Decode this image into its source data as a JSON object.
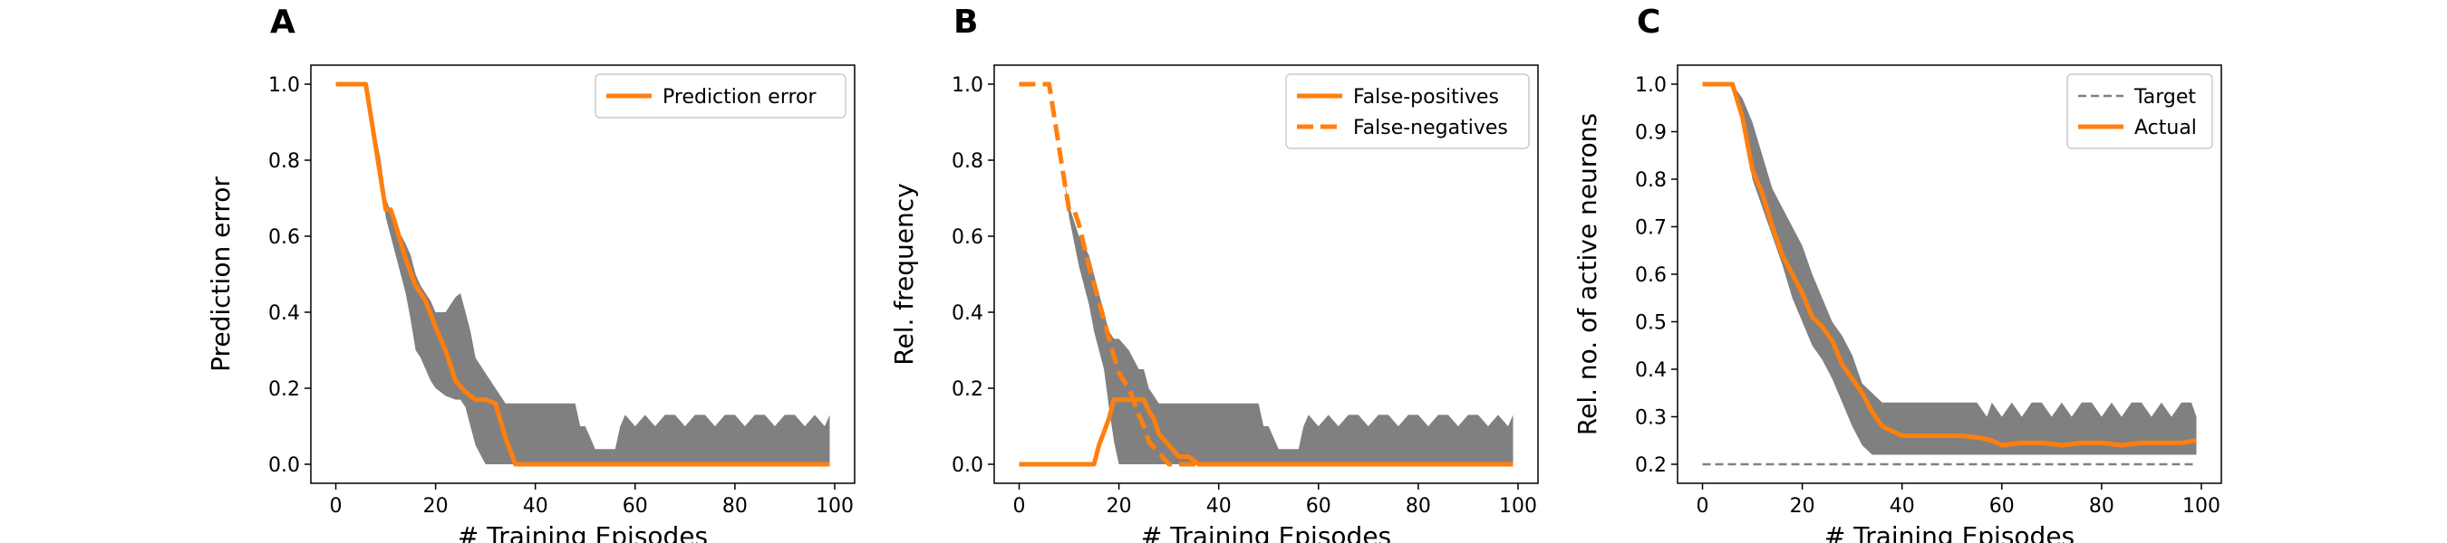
{
  "chart_data": [
    {
      "type": "line",
      "panel_label": "A",
      "xlabel": "# Training Episodes",
      "ylabel": "Prediction error",
      "xlim": [
        -5,
        104
      ],
      "ylim": [
        -0.05,
        1.05
      ],
      "xticks": [
        0,
        20,
        40,
        60,
        80,
        100
      ],
      "yticks": [
        "0.0",
        "0.2",
        "0.4",
        "0.6",
        "0.8",
        "1.0"
      ],
      "legend_position": "top-right",
      "band": {
        "color": "#808080",
        "x": [
          0,
          6,
          9,
          10,
          12,
          14,
          15,
          16,
          17,
          18,
          19,
          20,
          22,
          24,
          25,
          26,
          27,
          28,
          30,
          32,
          34,
          36,
          38,
          40,
          42,
          44,
          46,
          48,
          49,
          50,
          52,
          54,
          56,
          57,
          58,
          60,
          62,
          64,
          66,
          68,
          70,
          72,
          74,
          76,
          78,
          80,
          82,
          84,
          86,
          88,
          90,
          92,
          94,
          96,
          98,
          99
        ],
        "upper": [
          1.0,
          1.0,
          0.8,
          0.7,
          0.63,
          0.58,
          0.55,
          0.5,
          0.47,
          0.45,
          0.43,
          0.4,
          0.4,
          0.44,
          0.45,
          0.4,
          0.35,
          0.28,
          0.24,
          0.2,
          0.16,
          0.16,
          0.16,
          0.16,
          0.16,
          0.16,
          0.16,
          0.16,
          0.1,
          0.1,
          0.04,
          0.04,
          0.04,
          0.1,
          0.13,
          0.1,
          0.13,
          0.1,
          0.13,
          0.13,
          0.1,
          0.13,
          0.13,
          0.1,
          0.13,
          0.13,
          0.1,
          0.13,
          0.13,
          0.1,
          0.13,
          0.13,
          0.1,
          0.13,
          0.1,
          0.13
        ],
        "lower": [
          1.0,
          1.0,
          0.75,
          0.65,
          0.55,
          0.45,
          0.38,
          0.3,
          0.28,
          0.25,
          0.22,
          0.2,
          0.18,
          0.17,
          0.17,
          0.15,
          0.1,
          0.05,
          0.0,
          0.0,
          0.0,
          0.0,
          0.0,
          0.0,
          0.0,
          0.0,
          0.0,
          0.0,
          0.0,
          0.0,
          0.0,
          0.0,
          0.0,
          0.0,
          0.0,
          0.0,
          0.0,
          0.0,
          0.0,
          0.0,
          0.0,
          0.0,
          0.0,
          0.0,
          0.0,
          0.0,
          0.0,
          0.0,
          0.0,
          0.0,
          0.0,
          0.0,
          0.0,
          0.0,
          0.0,
          0.0
        ]
      },
      "series": [
        {
          "name": "Prediction error",
          "color": "#ff7f0e",
          "dash": "solid",
          "x": [
            0,
            6,
            10,
            11,
            12,
            14,
            16,
            18,
            20,
            22,
            24,
            26,
            28,
            30,
            32,
            34,
            36,
            40,
            60,
            80,
            99
          ],
          "y": [
            1.0,
            1.0,
            0.67,
            0.67,
            0.63,
            0.54,
            0.47,
            0.43,
            0.36,
            0.3,
            0.22,
            0.19,
            0.17,
            0.17,
            0.16,
            0.07,
            0.0,
            0.0,
            0.0,
            0.0,
            0.0
          ]
        }
      ]
    },
    {
      "type": "line",
      "panel_label": "B",
      "xlabel": "# Training Episodes",
      "ylabel": "Rel. frequency",
      "xlim": [
        -5,
        104
      ],
      "ylim": [
        -0.05,
        1.05
      ],
      "xticks": [
        0,
        20,
        40,
        60,
        80,
        100
      ],
      "yticks": [
        "0.0",
        "0.2",
        "0.4",
        "0.6",
        "0.8",
        "1.0"
      ],
      "legend_position": "top-right",
      "band": {
        "color": "#808080",
        "x": [
          0,
          6,
          9,
          10,
          12,
          14,
          15,
          16,
          17,
          18,
          19,
          20,
          22,
          24,
          25,
          26,
          28,
          30,
          32,
          34,
          36,
          38,
          40,
          44,
          48,
          49,
          50,
          52,
          54,
          56,
          57,
          58,
          60,
          62,
          64,
          66,
          68,
          70,
          72,
          74,
          76,
          78,
          80,
          82,
          84,
          86,
          88,
          90,
          92,
          94,
          96,
          98,
          99
        ],
        "upper": [
          1.0,
          1.0,
          0.75,
          0.68,
          0.6,
          0.55,
          0.5,
          0.45,
          0.4,
          0.35,
          0.33,
          0.33,
          0.3,
          0.25,
          0.25,
          0.2,
          0.16,
          0.16,
          0.16,
          0.16,
          0.16,
          0.16,
          0.16,
          0.16,
          0.16,
          0.1,
          0.1,
          0.04,
          0.04,
          0.04,
          0.1,
          0.13,
          0.1,
          0.13,
          0.1,
          0.13,
          0.13,
          0.1,
          0.13,
          0.13,
          0.1,
          0.13,
          0.13,
          0.1,
          0.13,
          0.13,
          0.1,
          0.13,
          0.13,
          0.1,
          0.13,
          0.1,
          0.13
        ],
        "lower": [
          1.0,
          1.0,
          0.75,
          0.65,
          0.52,
          0.42,
          0.35,
          0.3,
          0.25,
          0.15,
          0.06,
          0.0,
          0.0,
          0.0,
          0.0,
          0.0,
          0.0,
          0.0,
          0.0,
          0.0,
          0.0,
          0.0,
          0.0,
          0.0,
          0.0,
          0.0,
          0.0,
          0.0,
          0.0,
          0.0,
          0.0,
          0.0,
          0.0,
          0.0,
          0.0,
          0.0,
          0.0,
          0.0,
          0.0,
          0.0,
          0.0,
          0.0,
          0.0,
          0.0,
          0.0,
          0.0,
          0.0,
          0.0,
          0.0,
          0.0,
          0.0,
          0.0,
          0.0
        ]
      },
      "series": [
        {
          "name": "False-positives",
          "color": "#ff7f0e",
          "dash": "solid",
          "x": [
            0,
            15,
            16,
            18,
            19,
            20,
            22,
            24,
            25,
            26,
            27,
            28,
            30,
            32,
            34,
            36,
            99
          ],
          "y": [
            0.0,
            0.0,
            0.05,
            0.12,
            0.17,
            0.17,
            0.17,
            0.17,
            0.17,
            0.14,
            0.12,
            0.08,
            0.05,
            0.02,
            0.02,
            0.0,
            0.0
          ]
        },
        {
          "name": "False-negatives",
          "color": "#ff7f0e",
          "dash": "dashed",
          "x": [
            0,
            6,
            9,
            10,
            11,
            12,
            14,
            16,
            18,
            20,
            22,
            24,
            25,
            26,
            28,
            30,
            99
          ],
          "y": [
            1.0,
            1.0,
            0.75,
            0.67,
            0.67,
            0.63,
            0.52,
            0.43,
            0.33,
            0.24,
            0.2,
            0.13,
            0.1,
            0.06,
            0.03,
            0.0,
            0.0
          ]
        }
      ]
    },
    {
      "type": "line",
      "panel_label": "C",
      "xlabel": "# Training Episodes",
      "ylabel": "Rel. no. of active neurons",
      "xlim": [
        -5,
        104
      ],
      "ylim": [
        0.16,
        1.04
      ],
      "xticks": [
        0,
        20,
        40,
        60,
        80,
        100
      ],
      "yticks": [
        "0.2",
        "0.3",
        "0.4",
        "0.5",
        "0.6",
        "0.7",
        "0.8",
        "0.9",
        "1.0"
      ],
      "legend_position": "top-right",
      "band": {
        "color": "#808080",
        "x": [
          0,
          6,
          8,
          10,
          12,
          14,
          16,
          18,
          20,
          22,
          24,
          26,
          28,
          30,
          32,
          34,
          36,
          38,
          40,
          45,
          50,
          55,
          57,
          58,
          60,
          62,
          64,
          66,
          68,
          70,
          72,
          74,
          76,
          78,
          80,
          82,
          84,
          86,
          88,
          90,
          92,
          94,
          96,
          98,
          99
        ],
        "upper": [
          1.0,
          1.0,
          0.97,
          0.92,
          0.85,
          0.78,
          0.74,
          0.7,
          0.66,
          0.6,
          0.55,
          0.5,
          0.47,
          0.43,
          0.37,
          0.35,
          0.33,
          0.33,
          0.33,
          0.33,
          0.33,
          0.33,
          0.3,
          0.33,
          0.3,
          0.33,
          0.3,
          0.33,
          0.33,
          0.3,
          0.33,
          0.3,
          0.33,
          0.33,
          0.3,
          0.33,
          0.3,
          0.33,
          0.33,
          0.3,
          0.33,
          0.3,
          0.33,
          0.33,
          0.3
        ],
        "lower": [
          1.0,
          1.0,
          0.92,
          0.8,
          0.74,
          0.68,
          0.62,
          0.55,
          0.5,
          0.45,
          0.42,
          0.38,
          0.33,
          0.28,
          0.24,
          0.22,
          0.22,
          0.22,
          0.22,
          0.22,
          0.22,
          0.22,
          0.22,
          0.22,
          0.22,
          0.22,
          0.22,
          0.22,
          0.22,
          0.22,
          0.22,
          0.22,
          0.22,
          0.22,
          0.22,
          0.22,
          0.22,
          0.22,
          0.22,
          0.22,
          0.22,
          0.22,
          0.22,
          0.22,
          0.22
        ]
      },
      "series": [
        {
          "name": "Target",
          "color": "#808080",
          "dash": "dashed",
          "x": [
            0,
            99
          ],
          "y": [
            0.2,
            0.2
          ]
        },
        {
          "name": "Actual",
          "color": "#ff7f0e",
          "dash": "solid",
          "x": [
            0,
            6,
            8,
            10,
            12,
            14,
            16,
            18,
            20,
            22,
            24,
            26,
            28,
            30,
            32,
            34,
            36,
            38,
            40,
            44,
            48,
            52,
            56,
            58,
            60,
            64,
            68,
            72,
            76,
            80,
            84,
            88,
            92,
            96,
            99
          ],
          "y": [
            1.0,
            1.0,
            0.93,
            0.82,
            0.77,
            0.7,
            0.64,
            0.6,
            0.56,
            0.51,
            0.49,
            0.46,
            0.41,
            0.38,
            0.35,
            0.31,
            0.28,
            0.27,
            0.26,
            0.26,
            0.26,
            0.26,
            0.255,
            0.25,
            0.24,
            0.245,
            0.245,
            0.24,
            0.245,
            0.245,
            0.24,
            0.245,
            0.245,
            0.245,
            0.25
          ]
        }
      ]
    }
  ]
}
